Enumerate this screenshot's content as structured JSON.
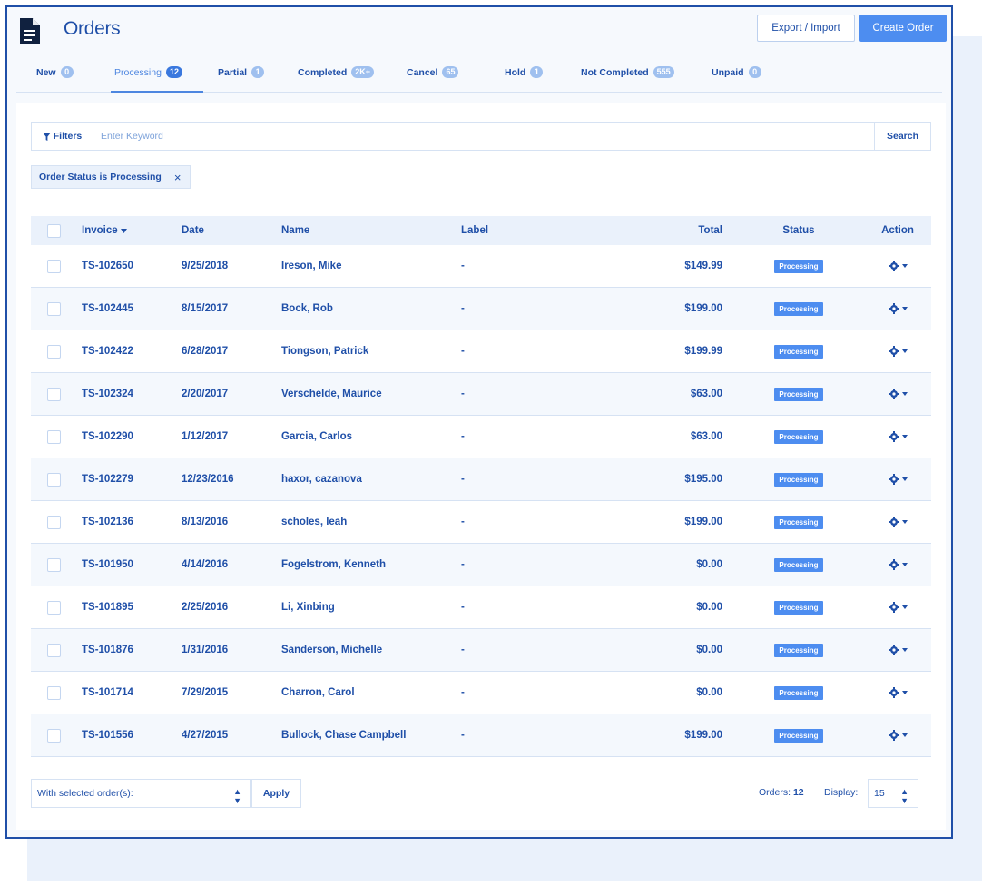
{
  "header": {
    "title": "Orders",
    "export_label": "Export / Import",
    "create_label": "Create Order"
  },
  "tabs": [
    {
      "label": "New",
      "count": "0",
      "active": false
    },
    {
      "label": "Processing",
      "count": "12",
      "active": true
    },
    {
      "label": "Partial",
      "count": "1",
      "active": false
    },
    {
      "label": "Completed",
      "count": "2K+",
      "active": false
    },
    {
      "label": "Cancel",
      "count": "65",
      "active": false
    },
    {
      "label": "Hold",
      "count": "1",
      "active": false
    },
    {
      "label": "Not Completed",
      "count": "555",
      "active": false
    },
    {
      "label": "Unpaid",
      "count": "0",
      "active": false
    }
  ],
  "filter": {
    "filters_label": "Filters",
    "search_placeholder": "Enter Keyword",
    "search_label": "Search",
    "active_filter": "Order Status is Processing",
    "remove_icon": "×"
  },
  "table": {
    "columns": {
      "invoice": "Invoice",
      "date": "Date",
      "name": "Name",
      "label": "Label",
      "total": "Total",
      "status": "Status",
      "action": "Action"
    },
    "rows": [
      {
        "invoice": "TS-102650",
        "date": "9/25/2018",
        "name": "Ireson, Mike",
        "label": "-",
        "total": "$149.99",
        "status": "Processing"
      },
      {
        "invoice": "TS-102445",
        "date": "8/15/2017",
        "name": "Bock, Rob",
        "label": "-",
        "total": "$199.00",
        "status": "Processing"
      },
      {
        "invoice": "TS-102422",
        "date": "6/28/2017",
        "name": "Tiongson, Patrick",
        "label": "-",
        "total": "$199.99",
        "status": "Processing"
      },
      {
        "invoice": "TS-102324",
        "date": "2/20/2017",
        "name": "Verschelde, Maurice",
        "label": "-",
        "total": "$63.00",
        "status": "Processing"
      },
      {
        "invoice": "TS-102290",
        "date": "1/12/2017",
        "name": "Garcia, Carlos",
        "label": "-",
        "total": "$63.00",
        "status": "Processing"
      },
      {
        "invoice": "TS-102279",
        "date": "12/23/2016",
        "name": "haxor, cazanova",
        "label": "-",
        "total": "$195.00",
        "status": "Processing"
      },
      {
        "invoice": "TS-102136",
        "date": "8/13/2016",
        "name": "scholes, leah",
        "label": "-",
        "total": "$199.00",
        "status": "Processing"
      },
      {
        "invoice": "TS-101950",
        "date": "4/14/2016",
        "name": "Fogelstrom, Kenneth",
        "label": "-",
        "total": "$0.00",
        "status": "Processing"
      },
      {
        "invoice": "TS-101895",
        "date": "2/25/2016",
        "name": "Li, Xinbing",
        "label": "-",
        "total": "$0.00",
        "status": "Processing"
      },
      {
        "invoice": "TS-101876",
        "date": "1/31/2016",
        "name": "Sanderson, Michelle",
        "label": "-",
        "total": "$0.00",
        "status": "Processing"
      },
      {
        "invoice": "TS-101714",
        "date": "7/29/2015",
        "name": "Charron, Carol",
        "label": "-",
        "total": "$0.00",
        "status": "Processing"
      },
      {
        "invoice": "TS-101556",
        "date": "4/27/2015",
        "name": "Bullock, Chase Campbell",
        "label": "-",
        "total": "$199.00",
        "status": "Processing"
      }
    ]
  },
  "footer": {
    "bulk_label": "With selected order(s):",
    "apply_label": "Apply",
    "orders_label": "Orders:",
    "orders_count": "12",
    "display_label": "Display:",
    "display_value": "15"
  },
  "colors": {
    "accent": "#4d8df0",
    "text": "#1f4fa8",
    "border": "#d6e2f3"
  }
}
